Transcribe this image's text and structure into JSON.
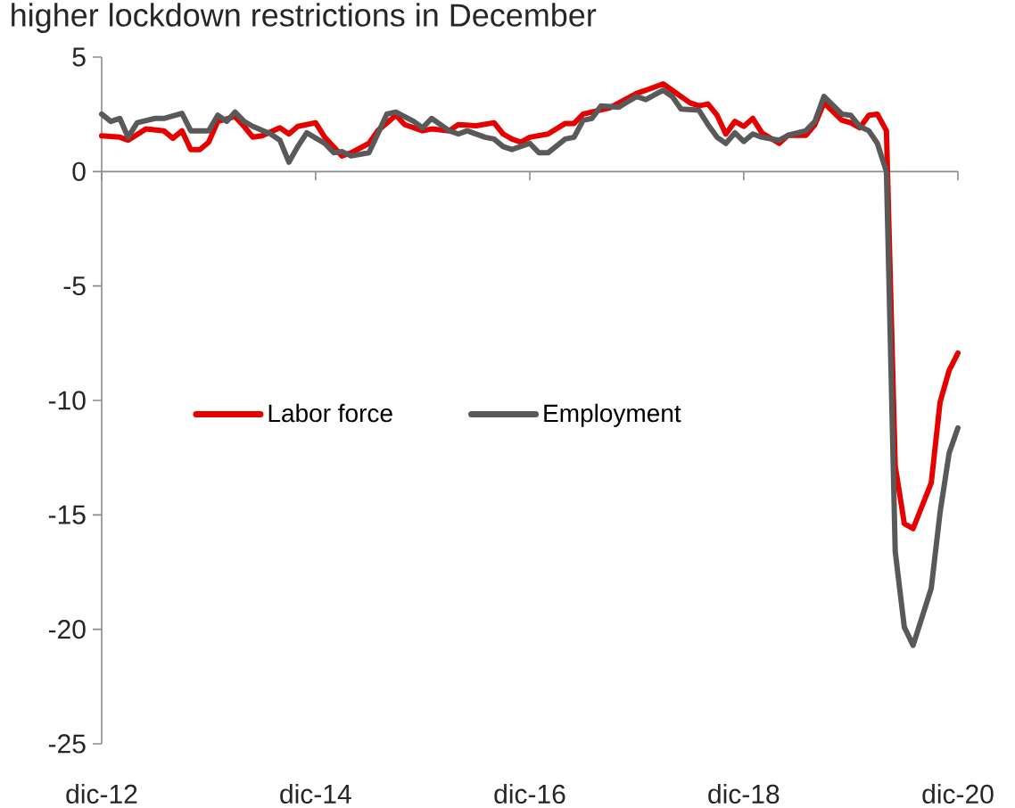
{
  "chart_data": {
    "type": "line",
    "title": "higher lockdown restrictions in December",
    "xlim": [
      "2012-12",
      "2020-12"
    ],
    "xticks": [
      {
        "value": "2012-12",
        "label": "dic-12"
      },
      {
        "value": "2014-12",
        "label": "dic-14"
      },
      {
        "value": "2016-12",
        "label": "dic-16"
      },
      {
        "value": "2018-12",
        "label": "dic-18"
      },
      {
        "value": "2020-12",
        "label": "dic-20"
      }
    ],
    "ylim": [
      -25,
      5
    ],
    "yticks": [
      -25,
      -20,
      -15,
      -10,
      -5,
      0,
      5
    ],
    "legend": "left",
    "marker": "none",
    "line_style": "solid",
    "series": [
      {
        "name": "Labor force",
        "color": "#e60000",
        "x": [
          "2012-12",
          "2013-02",
          "2013-03",
          "2013-05",
          "2013-07",
          "2013-08",
          "2013-09",
          "2013-10",
          "2013-11",
          "2013-12",
          "2014-01",
          "2014-03",
          "2014-04",
          "2014-05",
          "2014-06",
          "2014-08",
          "2014-09",
          "2014-10",
          "2014-12",
          "2015-01",
          "2015-03",
          "2015-04",
          "2015-06",
          "2015-07",
          "2015-09",
          "2015-10",
          "2015-12",
          "2016-01",
          "2016-03",
          "2016-04",
          "2016-06",
          "2016-08",
          "2016-09",
          "2016-10",
          "2016-11",
          "2016-12",
          "2017-02",
          "2017-04",
          "2017-05",
          "2017-06",
          "2017-07",
          "2017-09",
          "2017-10",
          "2017-12",
          "2018-01",
          "2018-03",
          "2018-04",
          "2018-06",
          "2018-07",
          "2018-08",
          "2018-09",
          "2018-10",
          "2018-11",
          "2018-12",
          "2019-01",
          "2019-02",
          "2019-04",
          "2019-05",
          "2019-07",
          "2019-08",
          "2019-09",
          "2019-11",
          "2019-12",
          "2020-01",
          "2020-02",
          "2020-03",
          "2020-04",
          "2020-05",
          "2020-06",
          "2020-07",
          "2020-09",
          "2020-10",
          "2020-11",
          "2020-12"
        ],
        "values": [
          1.56,
          1.5,
          1.37,
          1.86,
          1.78,
          1.45,
          1.78,
          0.96,
          0.96,
          1.28,
          2.19,
          2.4,
          1.97,
          1.5,
          1.56,
          1.91,
          1.64,
          1.97,
          2.13,
          1.5,
          0.68,
          0.82,
          1.23,
          1.78,
          2.46,
          2.05,
          1.78,
          1.86,
          1.78,
          2.05,
          2.0,
          2.13,
          1.64,
          1.42,
          1.28,
          1.5,
          1.64,
          2.1,
          2.1,
          2.51,
          2.6,
          2.79,
          3.0,
          3.42,
          3.55,
          3.83,
          3.55,
          3.0,
          2.87,
          2.95,
          2.46,
          1.64,
          2.19,
          1.97,
          2.32,
          1.69,
          1.23,
          1.58,
          1.58,
          2.05,
          3.0,
          2.24,
          2.13,
          1.91,
          2.46,
          2.51,
          1.78,
          -12.86,
          -15.38,
          -15.6,
          -13.6,
          -10.08,
          -8.69,
          -7.93
        ]
      },
      {
        "name": "Employment",
        "color": "#595959",
        "x": [
          "2012-12",
          "2013-01",
          "2013-02",
          "2013-03",
          "2013-04",
          "2013-06",
          "2013-07",
          "2013-09",
          "2013-10",
          "2013-12",
          "2014-01",
          "2014-02",
          "2014-03",
          "2014-04",
          "2014-05",
          "2014-07",
          "2014-08",
          "2014-09",
          "2014-10",
          "2014-11",
          "2015-01",
          "2015-02",
          "2015-03",
          "2015-04",
          "2015-06",
          "2015-07",
          "2015-08",
          "2015-09",
          "2015-11",
          "2015-12",
          "2016-01",
          "2016-03",
          "2016-04",
          "2016-05",
          "2016-07",
          "2016-08",
          "2016-09",
          "2016-10",
          "2016-12",
          "2017-01",
          "2017-02",
          "2017-04",
          "2017-05",
          "2017-06",
          "2017-07",
          "2017-08",
          "2017-10",
          "2017-11",
          "2017-12",
          "2018-01",
          "2018-03",
          "2018-04",
          "2018-05",
          "2018-07",
          "2018-08",
          "2018-09",
          "2018-10",
          "2018-11",
          "2018-12",
          "2019-01",
          "2019-02",
          "2019-04",
          "2019-05",
          "2019-07",
          "2019-08",
          "2019-09",
          "2019-11",
          "2019-12",
          "2020-01",
          "2020-02",
          "2020-03",
          "2020-04",
          "2020-05",
          "2020-06",
          "2020-07",
          "2020-09",
          "2020-10",
          "2020-11",
          "2020-12"
        ],
        "values": [
          2.51,
          2.19,
          2.32,
          1.5,
          2.13,
          2.32,
          2.32,
          2.54,
          1.78,
          1.78,
          2.46,
          2.19,
          2.6,
          2.19,
          1.97,
          1.64,
          1.37,
          0.41,
          1.09,
          1.69,
          1.23,
          0.82,
          0.87,
          0.68,
          0.82,
          1.64,
          2.51,
          2.6,
          2.19,
          1.91,
          2.32,
          1.78,
          1.64,
          1.78,
          1.5,
          1.42,
          1.09,
          0.96,
          1.23,
          0.82,
          0.82,
          1.42,
          1.5,
          2.24,
          2.32,
          2.87,
          2.81,
          3.06,
          3.28,
          3.14,
          3.55,
          3.28,
          2.73,
          2.68,
          2.05,
          1.5,
          1.23,
          1.69,
          1.31,
          1.64,
          1.5,
          1.37,
          1.58,
          1.78,
          2.19,
          3.28,
          2.51,
          2.46,
          1.97,
          1.78,
          1.23,
          0,
          -16.6,
          -19.9,
          -20.7,
          -18.2,
          -14.9,
          -12.3,
          -11.2
        ]
      }
    ]
  }
}
